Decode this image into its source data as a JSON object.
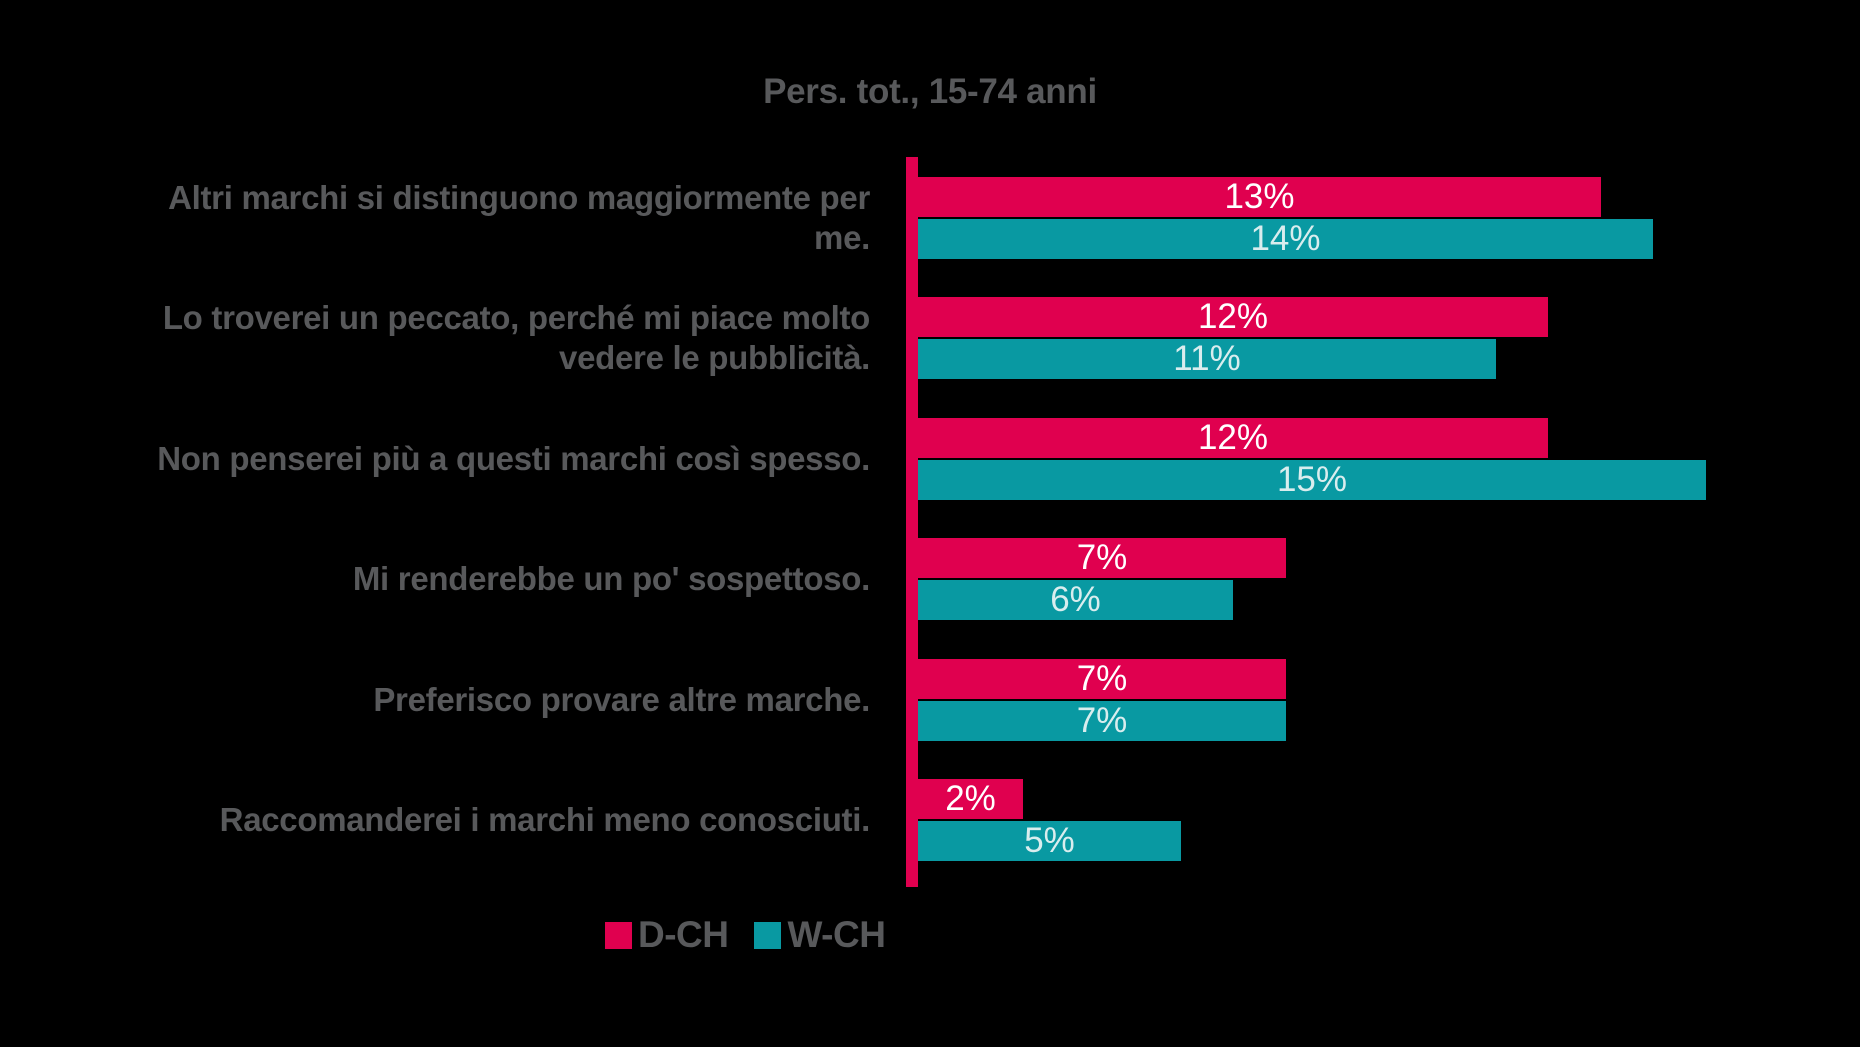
{
  "chart_data": {
    "type": "bar",
    "orientation": "horizontal",
    "title": "Pers. tot., 15-74 anni",
    "unit": "%",
    "xlim": [
      0,
      15
    ],
    "grid": false,
    "legend_position": "bottom",
    "categories": [
      "Altri marchi si distinguono maggiormente per\nme.",
      "Lo troverei un peccato, perché mi piace molto\nvedere le pubblicità.",
      "Non penserei più a questi marchi così spesso.",
      "Mi renderebbe un po' sospettoso.",
      "Preferisco provare altre marche.",
      "Raccomanderei i marchi meno conosciuti."
    ],
    "series": [
      {
        "name": "D-CH",
        "color": "#E0004F",
        "values": [
          13,
          12,
          12,
          7,
          7,
          2
        ]
      },
      {
        "name": "W-CH",
        "color": "#0999A2",
        "values": [
          14,
          11,
          15,
          6,
          7,
          5
        ]
      }
    ]
  },
  "palette": {
    "background": "#000000",
    "text_gray": "#58595B",
    "axis_line": "#E0004F",
    "value_label_on_pink": "#FFFFFF",
    "value_label_on_teal": "#D9EDEE"
  }
}
